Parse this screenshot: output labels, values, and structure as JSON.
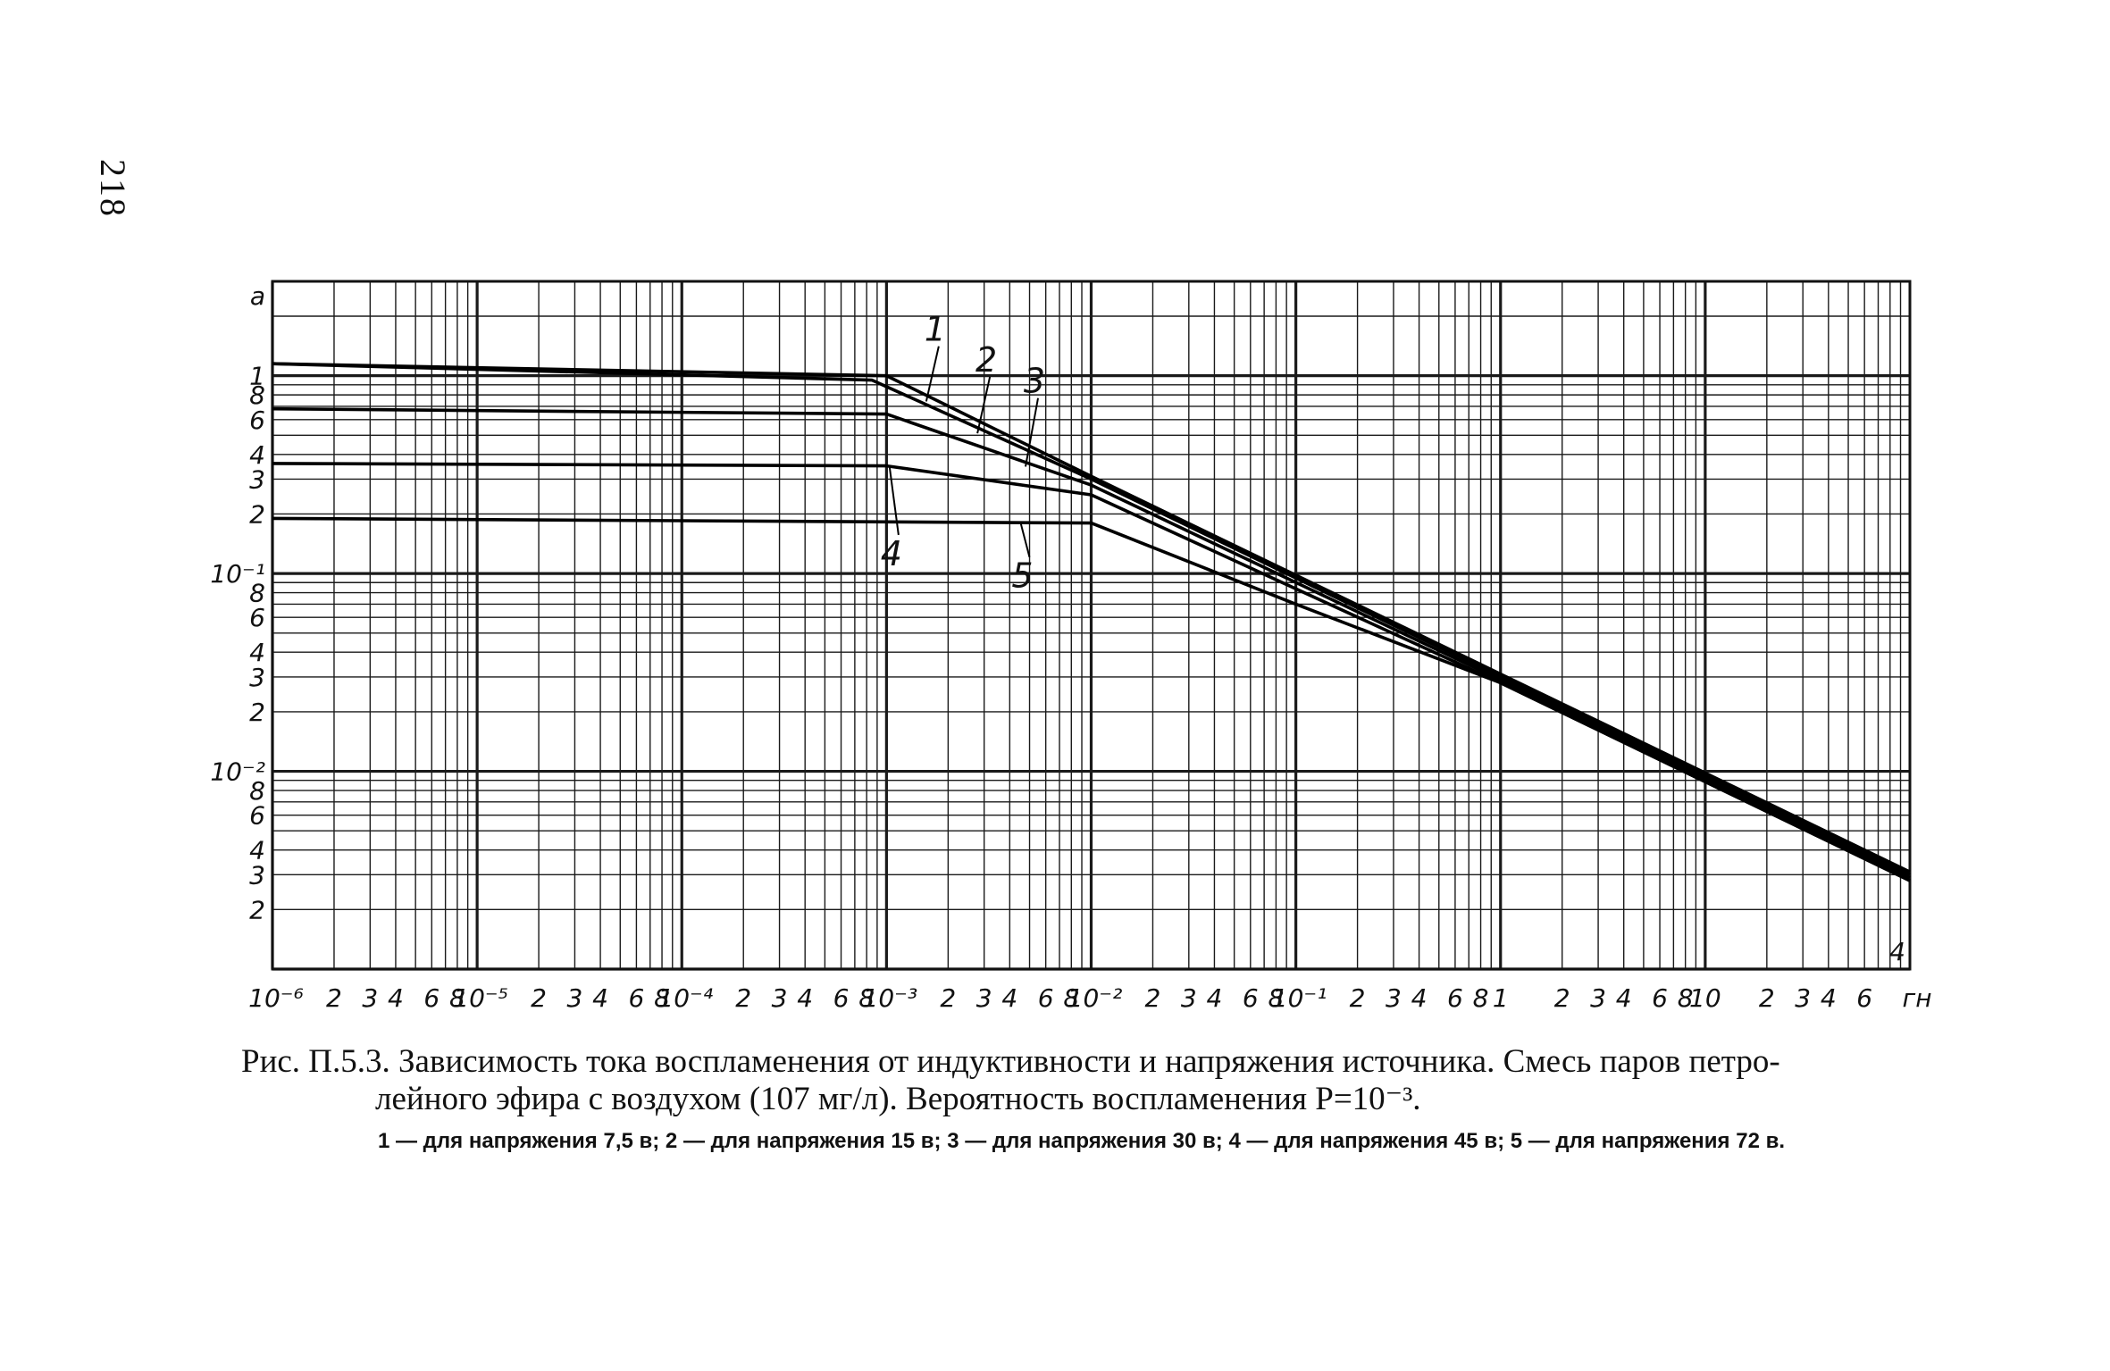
{
  "page": {
    "number": "218"
  },
  "chart_data": {
    "type": "line",
    "x_scale": "log",
    "y_scale": "log",
    "xlim": [
      1e-06,
      100
    ],
    "ylim": [
      0.001,
      3
    ],
    "grid": true,
    "x_tick_labels": [
      {
        "v": 1e-06,
        "t": "10⁻⁶"
      },
      {
        "v": 2e-06,
        "t": "2"
      },
      {
        "v": 3e-06,
        "t": "3"
      },
      {
        "v": 4e-06,
        "t": "4"
      },
      {
        "v": 6e-06,
        "t": "6"
      },
      {
        "v": 8e-06,
        "t": "8"
      },
      {
        "v": 1e-05,
        "t": "10⁻⁵"
      },
      {
        "v": 2e-05,
        "t": "2"
      },
      {
        "v": 3e-05,
        "t": "3"
      },
      {
        "v": 4e-05,
        "t": "4"
      },
      {
        "v": 6e-05,
        "t": "6"
      },
      {
        "v": 8e-05,
        "t": "8"
      },
      {
        "v": 0.0001,
        "t": "10⁻⁴"
      },
      {
        "v": 0.0002,
        "t": "2"
      },
      {
        "v": 0.0003,
        "t": "3"
      },
      {
        "v": 0.0004,
        "t": "4"
      },
      {
        "v": 0.0006,
        "t": "6"
      },
      {
        "v": 0.0008,
        "t": "8"
      },
      {
        "v": 0.001,
        "t": "10⁻³"
      },
      {
        "v": 0.002,
        "t": "2"
      },
      {
        "v": 0.003,
        "t": "3"
      },
      {
        "v": 0.004,
        "t": "4"
      },
      {
        "v": 0.006,
        "t": "6"
      },
      {
        "v": 0.008,
        "t": "8"
      },
      {
        "v": 0.01,
        "t": "10⁻²"
      },
      {
        "v": 0.02,
        "t": "2"
      },
      {
        "v": 0.03,
        "t": "3"
      },
      {
        "v": 0.04,
        "t": "4"
      },
      {
        "v": 0.06,
        "t": "6"
      },
      {
        "v": 0.08,
        "t": "8"
      },
      {
        "v": 0.1,
        "t": "10⁻¹"
      },
      {
        "v": 0.2,
        "t": "2"
      },
      {
        "v": 0.3,
        "t": "3"
      },
      {
        "v": 0.4,
        "t": "4"
      },
      {
        "v": 0.6,
        "t": "6"
      },
      {
        "v": 0.8,
        "t": "8"
      },
      {
        "v": 1,
        "t": "1"
      },
      {
        "v": 2,
        "t": "2"
      },
      {
        "v": 3,
        "t": "3"
      },
      {
        "v": 4,
        "t": "4"
      },
      {
        "v": 6,
        "t": "6"
      },
      {
        "v": 8,
        "t": "8"
      },
      {
        "v": 10,
        "t": "10"
      },
      {
        "v": 20,
        "t": "2"
      },
      {
        "v": 30,
        "t": "3"
      },
      {
        "v": 40,
        "t": "4"
      },
      {
        "v": 60,
        "t": "6"
      }
    ],
    "x_unit_label": "гн",
    "y_unit_label": "а",
    "y_tick_labels": [
      {
        "v": 1,
        "t": "1"
      },
      {
        "v": 0.8,
        "t": "8"
      },
      {
        "v": 0.6,
        "t": "6"
      },
      {
        "v": 0.4,
        "t": "4"
      },
      {
        "v": 0.3,
        "t": "3"
      },
      {
        "v": 0.2,
        "t": "2"
      },
      {
        "v": 0.1,
        "t": "10⁻¹"
      },
      {
        "v": 0.08,
        "t": "8"
      },
      {
        "v": 0.06,
        "t": "6"
      },
      {
        "v": 0.04,
        "t": "4"
      },
      {
        "v": 0.03,
        "t": "3"
      },
      {
        "v": 0.02,
        "t": "2"
      },
      {
        "v": 0.01,
        "t": "10⁻²"
      },
      {
        "v": 0.008,
        "t": "8"
      },
      {
        "v": 0.006,
        "t": "6"
      },
      {
        "v": 0.004,
        "t": "4"
      },
      {
        "v": 0.003,
        "t": "3"
      },
      {
        "v": 0.002,
        "t": "2"
      }
    ],
    "y_bottom_label": "4",
    "series": [
      {
        "name": "1",
        "points": [
          [
            1e-06,
            1.15
          ],
          [
            0.001,
            1.0
          ],
          [
            0.01,
            0.31
          ],
          [
            1,
            0.031
          ],
          [
            100,
            0.0031
          ]
        ]
      },
      {
        "name": "2",
        "points": [
          [
            1e-06,
            1.15
          ],
          [
            0.00085,
            0.95
          ],
          [
            0.01,
            0.3
          ],
          [
            1,
            0.03
          ],
          [
            100,
            0.003
          ]
        ]
      },
      {
        "name": "3",
        "points": [
          [
            1e-06,
            0.68
          ],
          [
            0.001,
            0.64
          ],
          [
            0.01,
            0.28
          ],
          [
            1,
            0.029
          ],
          [
            100,
            0.0029
          ]
        ]
      },
      {
        "name": "4",
        "points": [
          [
            1e-06,
            0.36
          ],
          [
            0.001,
            0.35
          ],
          [
            0.01,
            0.25
          ],
          [
            1,
            0.028
          ],
          [
            100,
            0.0028
          ]
        ]
      },
      {
        "name": "5",
        "points": [
          [
            1e-06,
            0.19
          ],
          [
            0.01,
            0.18
          ],
          [
            0.1,
            0.07
          ],
          [
            1,
            0.028
          ],
          [
            100,
            0.0028
          ]
        ]
      }
    ],
    "curve_labels": [
      {
        "text": "1",
        "x": 0.0018,
        "y": 1.5
      },
      {
        "text": "2",
        "x": 0.0032,
        "y": 1.05
      },
      {
        "text": "3",
        "x": 0.0055,
        "y": 0.82
      },
      {
        "text": "4",
        "x": 0.0011,
        "y": 0.11
      },
      {
        "text": "5",
        "x": 0.0048,
        "y": 0.085
      }
    ]
  },
  "caption": {
    "line1": "Рис. П.5.3. Зависимость тока воспламенения от индуктивности и напряжения источника. Смесь паров петро-",
    "line2": "лейного эфира с воздухом (107 мг/л). Вероятность воспламенения P=10⁻³.",
    "legend": "1 — для напряжения 7,5 в; 2 — для напряжения 15 в; 3 — для напряжения 30 в; 4 — для напряжения 45 в; 5 — для напряжения 72 в."
  }
}
